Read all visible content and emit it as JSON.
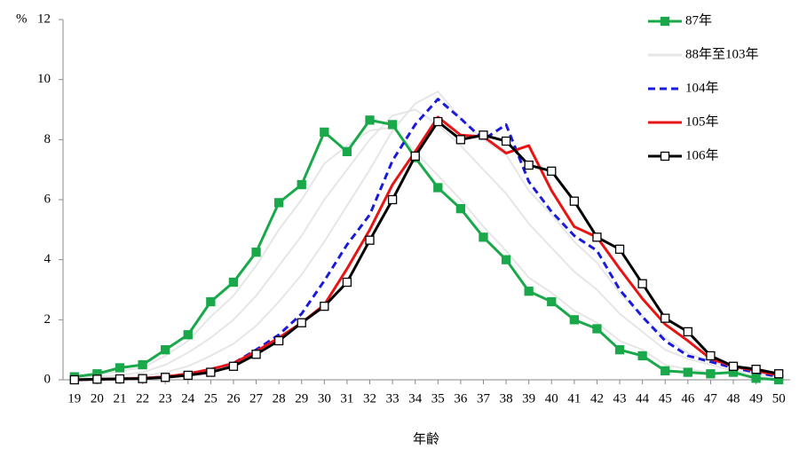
{
  "chart_data": {
    "type": "line",
    "y_label": "%",
    "x_label": "年齡",
    "x": [
      19,
      20,
      21,
      22,
      23,
      24,
      25,
      26,
      27,
      28,
      29,
      30,
      31,
      32,
      33,
      34,
      35,
      36,
      37,
      38,
      39,
      40,
      41,
      42,
      43,
      44,
      45,
      46,
      47,
      48,
      49,
      50
    ],
    "xlim": [
      18.5,
      50.5
    ],
    "xticks": [
      19,
      20,
      21,
      22,
      23,
      24,
      25,
      26,
      27,
      28,
      29,
      30,
      31,
      32,
      33,
      34,
      35,
      36,
      37,
      38,
      39,
      40,
      41,
      42,
      43,
      44,
      45,
      46,
      47,
      48,
      49,
      50
    ],
    "ylim": [
      0,
      12
    ],
    "yticks": [
      0,
      2,
      4,
      6,
      8,
      10,
      12
    ],
    "legend": "top-right",
    "series": [
      {
        "name": "87年",
        "color": "#19a84a",
        "marker": "filled-square",
        "dash": false,
        "values": [
          0.1,
          0.2,
          0.4,
          0.5,
          1.0,
          1.5,
          2.6,
          3.25,
          4.25,
          5.9,
          6.5,
          8.25,
          7.6,
          8.65,
          8.5,
          7.4,
          6.4,
          5.7,
          4.75,
          4.0,
          2.95,
          2.6,
          2.0,
          1.7,
          1.0,
          0.8,
          0.3,
          0.25,
          0.2,
          0.25,
          0.05,
          0.0
        ]
      },
      {
        "name": "88年至103年",
        "color": "#e6e6e6",
        "marker": "none",
        "dash": false,
        "values": [
          [
            0.1,
            0.15,
            0.3,
            0.4,
            0.8,
            1.3,
            2.1,
            2.8,
            3.8,
            5.0,
            6.0,
            7.2,
            7.8,
            8.3,
            8.4,
            7.6,
            6.8,
            6.0,
            5.1,
            4.3,
            3.4,
            2.9,
            2.3,
            1.9,
            1.3,
            1.0,
            0.5,
            0.35,
            0.25,
            0.2,
            0.1,
            0.05
          ],
          [
            0.05,
            0.1,
            0.15,
            0.25,
            0.5,
            0.9,
            1.4,
            2.0,
            2.8,
            3.8,
            4.8,
            6.0,
            7.0,
            8.0,
            8.8,
            9.0,
            8.5,
            7.8,
            7.0,
            6.2,
            5.2,
            4.4,
            3.6,
            3.0,
            2.2,
            1.6,
            1.0,
            0.7,
            0.5,
            0.3,
            0.2,
            0.1
          ],
          [
            0.02,
            0.05,
            0.08,
            0.12,
            0.25,
            0.45,
            0.8,
            1.2,
            1.8,
            2.6,
            3.5,
            4.6,
            5.8,
            7.0,
            8.3,
            9.2,
            9.6,
            8.7,
            8.0,
            7.5,
            6.3,
            5.5,
            4.6,
            3.9,
            2.9,
            2.1,
            1.4,
            0.9,
            0.6,
            0.4,
            0.25,
            0.12
          ]
        ]
      },
      {
        "name": "104年",
        "color": "#1a1adc",
        "marker": "none",
        "dash": true,
        "values": [
          0,
          0.02,
          0.03,
          0.05,
          0.1,
          0.2,
          0.35,
          0.55,
          1.0,
          1.5,
          2.2,
          3.3,
          4.5,
          5.5,
          7.3,
          8.5,
          9.35,
          8.7,
          8.0,
          8.5,
          6.6,
          5.6,
          4.8,
          4.3,
          3.0,
          2.1,
          1.3,
          0.8,
          0.6,
          0.4,
          0.25,
          0.1
        ]
      },
      {
        "name": "105年",
        "color": "#e81414",
        "marker": "none",
        "dash": false,
        "values": [
          0,
          0.02,
          0.03,
          0.05,
          0.1,
          0.2,
          0.35,
          0.55,
          0.95,
          1.4,
          1.9,
          2.5,
          3.7,
          5.0,
          6.5,
          7.6,
          8.75,
          8.15,
          8.1,
          7.55,
          7.8,
          6.3,
          5.1,
          4.75,
          3.7,
          2.7,
          1.85,
          1.3,
          0.7,
          0.45,
          0.3,
          0.15
        ]
      },
      {
        "name": "106年",
        "color": "#000000",
        "marker": "hollow-square",
        "dash": false,
        "values": [
          0,
          0.02,
          0.03,
          0.04,
          0.08,
          0.15,
          0.25,
          0.45,
          0.85,
          1.3,
          1.9,
          2.45,
          3.25,
          4.65,
          6.0,
          7.45,
          8.6,
          8.0,
          8.15,
          7.95,
          7.15,
          6.95,
          5.95,
          4.75,
          4.35,
          3.2,
          2.05,
          1.6,
          0.8,
          0.45,
          0.35,
          0.2
        ]
      }
    ]
  }
}
